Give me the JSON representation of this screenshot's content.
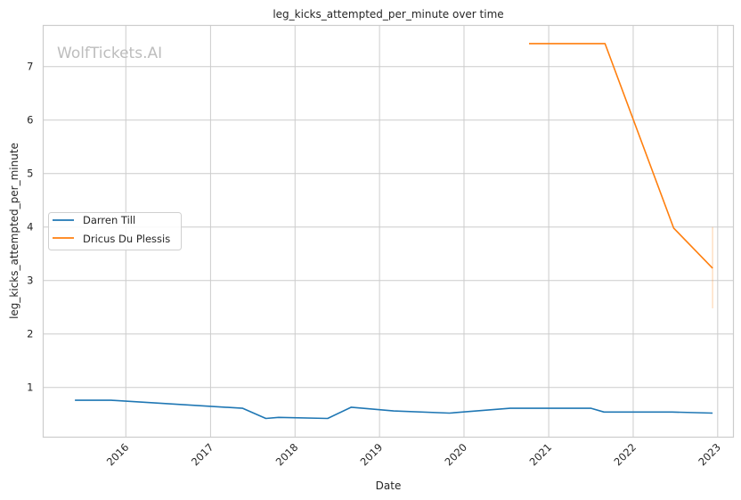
{
  "chart_data": {
    "type": "line",
    "title": "leg_kicks_attempted_per_minute over time",
    "xlabel": "Date",
    "ylabel": "leg_kicks_attempted_per_minute",
    "watermark": "WolfTickets.AI",
    "xlim": [
      "2015-01-09",
      "2023-03-10"
    ],
    "ylim": [
      0.07,
      7.77
    ],
    "x_ticks": [
      "2016",
      "2017",
      "2018",
      "2019",
      "2020",
      "2021",
      "2022",
      "2023"
    ],
    "y_ticks": [
      "1",
      "2",
      "3",
      "4",
      "5",
      "6",
      "7"
    ],
    "grid": true,
    "legend_position": "center-left",
    "series": [
      {
        "name": "Darren Till",
        "color": "#1f77b4",
        "x": [
          "2015-05-26",
          "2015-10-30",
          "2017-05-20",
          "2017-08-28",
          "2017-10-22",
          "2018-05-22",
          "2018-09-01",
          "2019-03-03",
          "2019-10-30",
          "2020-07-18",
          "2021-07-03",
          "2021-08-28",
          "2022-06-18",
          "2022-12-10"
        ],
        "y": [
          0.76,
          0.76,
          0.61,
          0.42,
          0.44,
          0.42,
          0.63,
          0.56,
          0.52,
          0.61,
          0.61,
          0.54,
          0.54,
          0.52
        ]
      },
      {
        "name": "Dricus Du Plessis",
        "color": "#ff7f0e",
        "x": [
          "2020-10-08",
          "2021-09-01",
          "2022-06-25",
          "2022-12-10"
        ],
        "y": [
          7.43,
          7.43,
          3.98,
          3.23
        ],
        "interval": {
          "x": "2022-12-10",
          "low": 2.48,
          "high": 4.0
        }
      }
    ]
  }
}
